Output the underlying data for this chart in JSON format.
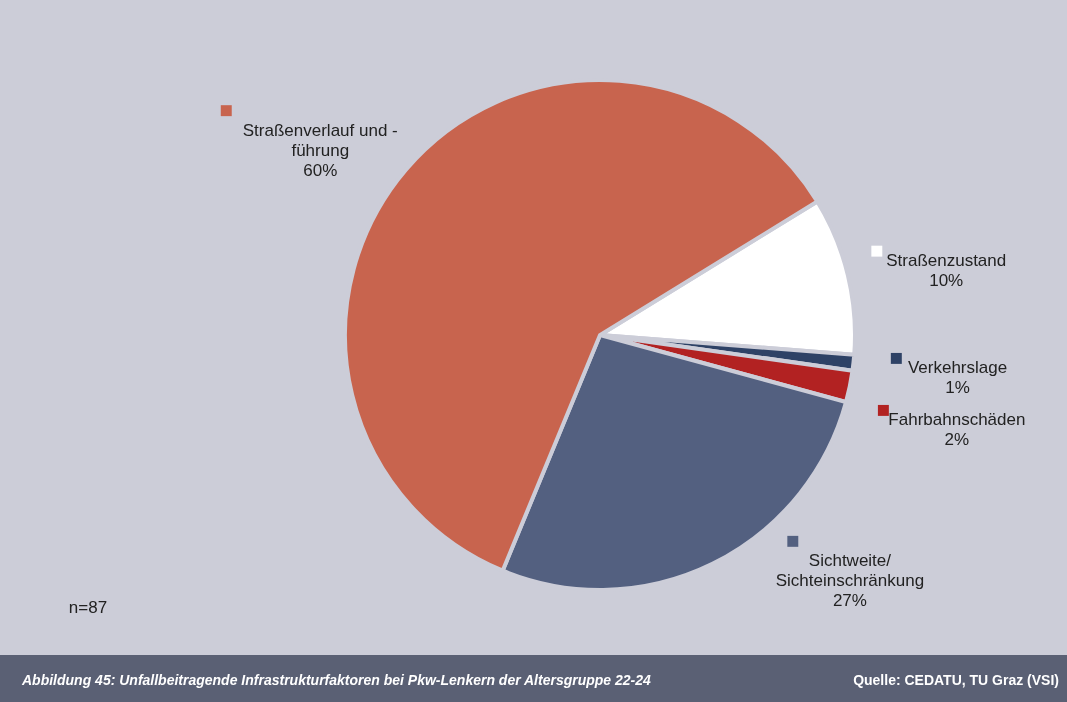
{
  "chart_data": {
    "type": "pie",
    "title": "Abbildung 45: Unfallbeitragende Infrastrukturfaktoren bei Pkw-Lenkern der Altersgruppe 22-24",
    "categories": [
      "Straßenzustand",
      "Verkehrslage",
      "Fahrbahnschäden",
      "Sichtweite/\nSichteinschränkung",
      "Straßenverlauf und -\nführung"
    ],
    "values": [
      10,
      1,
      2,
      27,
      60
    ],
    "value_labels": [
      "10%",
      "1%",
      "2%",
      "27%",
      "60%"
    ],
    "colors": [
      "#ffffff",
      "#2e4266",
      "#b22222",
      "#536080",
      "#c8644e"
    ],
    "legend": "bottom right",
    "annotations": [
      "n=87",
      "Quelle: CEDATU, TU Graz (VSI)"
    ]
  }
}
